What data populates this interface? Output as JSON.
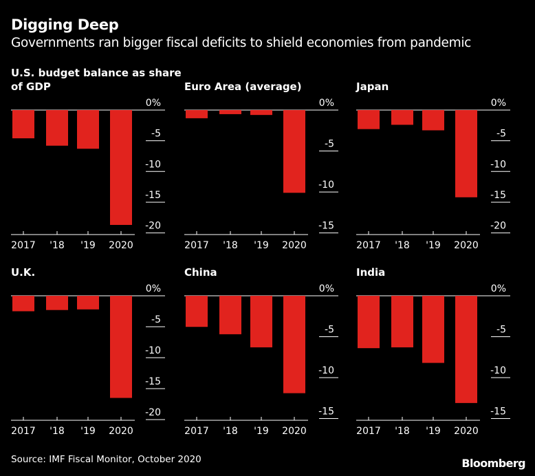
{
  "header": {
    "title": "Digging Deep",
    "subtitle": "Governments ran bigger fiscal deficits to shield economies from pandemic"
  },
  "footer": {
    "source": "Source: IMF Fiscal Monitor, October 2020",
    "brand": "Bloomberg"
  },
  "colors": {
    "bar": "#e1231e",
    "background": "#000000",
    "text": "#ffffff"
  },
  "chart_data": [
    {
      "type": "bar",
      "title": "U.S. budget balance as share of GDP",
      "categories": [
        "2017",
        "'18",
        "'19",
        "2020"
      ],
      "values": [
        -4.6,
        -5.8,
        -6.3,
        -18.7
      ],
      "yticks": [
        0,
        -5,
        -10,
        -15,
        -20
      ],
      "yticklabels": [
        "0%",
        "-5",
        "-10",
        "-15",
        "-20"
      ],
      "ylim": [
        -20,
        0
      ]
    },
    {
      "type": "bar",
      "title": "Euro Area (average)",
      "categories": [
        "2017",
        "'18",
        "'19",
        "2020"
      ],
      "values": [
        -1.0,
        -0.5,
        -0.6,
        -10.1
      ],
      "yticks": [
        0,
        -5,
        -10,
        -15
      ],
      "yticklabels": [
        "0%",
        "-5",
        "-10",
        "-15"
      ],
      "ylim": [
        -15,
        0
      ]
    },
    {
      "type": "bar",
      "title": "Japan",
      "categories": [
        "2017",
        "'18",
        "'19",
        "2020"
      ],
      "values": [
        -3.1,
        -2.4,
        -3.3,
        -14.2
      ],
      "yticks": [
        0,
        -5,
        -10,
        -15,
        -20
      ],
      "yticklabels": [
        "0%",
        "-5",
        "-10",
        "-15",
        "-20"
      ],
      "ylim": [
        -20,
        0
      ]
    },
    {
      "type": "bar",
      "title": "U.K.",
      "categories": [
        "2017",
        "'18",
        "'19",
        "2020"
      ],
      "values": [
        -2.5,
        -2.3,
        -2.2,
        -16.5
      ],
      "yticks": [
        0,
        -5,
        -10,
        -15,
        -20
      ],
      "yticklabels": [
        "0%",
        "-5",
        "-10",
        "-15",
        "-20"
      ],
      "ylim": [
        -20,
        0
      ]
    },
    {
      "type": "bar",
      "title": "China",
      "categories": [
        "2017",
        "'18",
        "'19",
        "2020"
      ],
      "values": [
        -3.8,
        -4.7,
        -6.3,
        -11.9
      ],
      "yticks": [
        0,
        -5,
        -10,
        -15
      ],
      "yticklabels": [
        "0%",
        "-5",
        "-10",
        "-15"
      ],
      "ylim": [
        -15,
        0
      ]
    },
    {
      "type": "bar",
      "title": "India",
      "categories": [
        "2017",
        "'18",
        "'19",
        "2020"
      ],
      "values": [
        -6.4,
        -6.3,
        -8.2,
        -13.1
      ],
      "yticks": [
        0,
        -5,
        -10,
        -15
      ],
      "yticklabels": [
        "0%",
        "-5",
        "-10",
        "-15"
      ],
      "ylim": [
        -15,
        0
      ]
    }
  ]
}
